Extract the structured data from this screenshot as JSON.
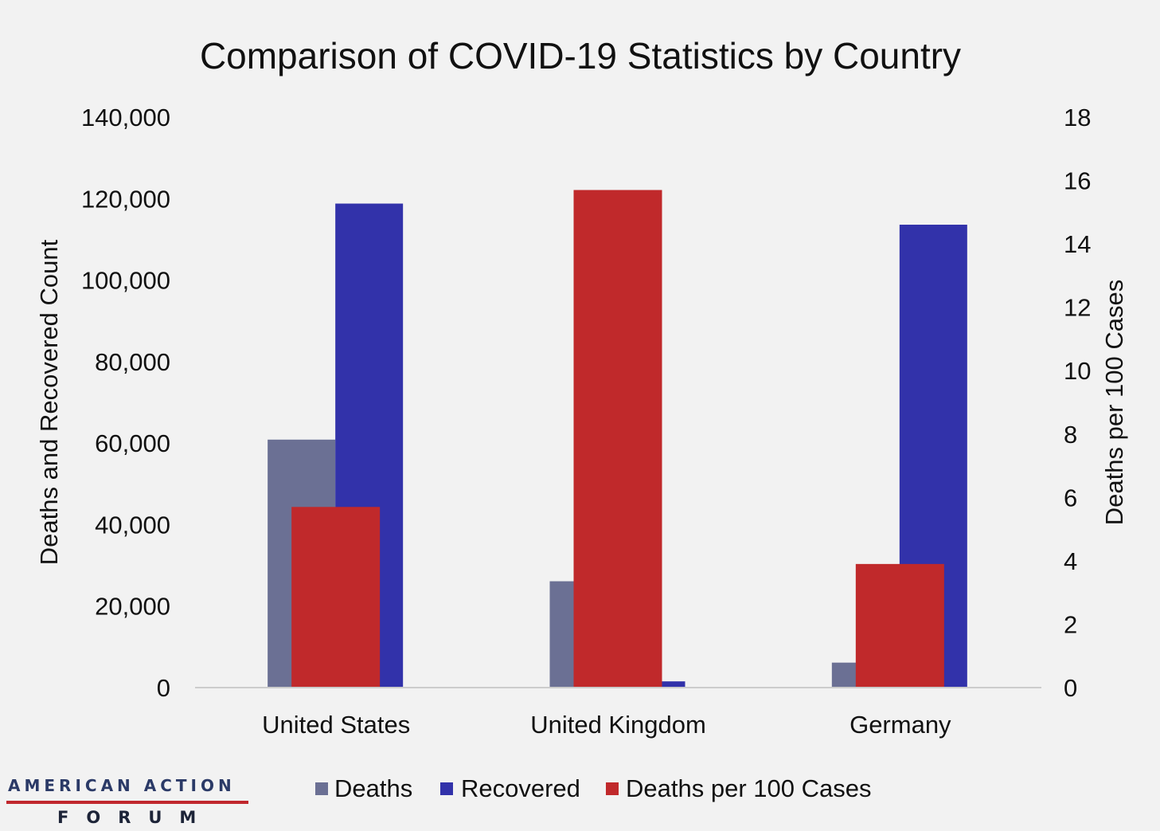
{
  "logo": {
    "line1": "AMERICAN ACTION",
    "line2": "FORUM"
  },
  "colors": {
    "background": "#f2f2f2",
    "deaths": "#6b7094",
    "recovered": "#3232aa",
    "deaths_per_100": "#c0292b",
    "text": "#111111",
    "axis_line": "#cccccc",
    "logo_red": "#c0272d",
    "logo_navy": "#2b3a67"
  },
  "chart_data": {
    "type": "bar",
    "title": "Comparison of COVID-19 Statistics by Country",
    "categories": [
      "United States",
      "United Kingdom",
      "Germany"
    ],
    "series": [
      {
        "name": "Deaths",
        "axis": "left",
        "values": [
          60853,
          26097,
          6126
        ]
      },
      {
        "name": "Recovered",
        "axis": "left",
        "values": [
          118781,
          1526,
          113600
        ]
      },
      {
        "name": "Deaths per 100 Cases",
        "axis": "right",
        "values": [
          5.7,
          15.7,
          3.9
        ]
      }
    ],
    "ylabel": "Deaths and Recovered Count",
    "ylabel_right": "Deaths per 100 Cases",
    "ylim": [
      0,
      140000
    ],
    "ylim_right": [
      0,
      18
    ],
    "yticks": [
      "0",
      "20,000",
      "40,000",
      "60,000",
      "80,000",
      "100,000",
      "120,000",
      "140,000"
    ],
    "yticks_right": [
      "0",
      "2",
      "4",
      "6",
      "8",
      "10",
      "12",
      "14",
      "16",
      "18"
    ],
    "grid": false,
    "legend_position": "bottom"
  }
}
